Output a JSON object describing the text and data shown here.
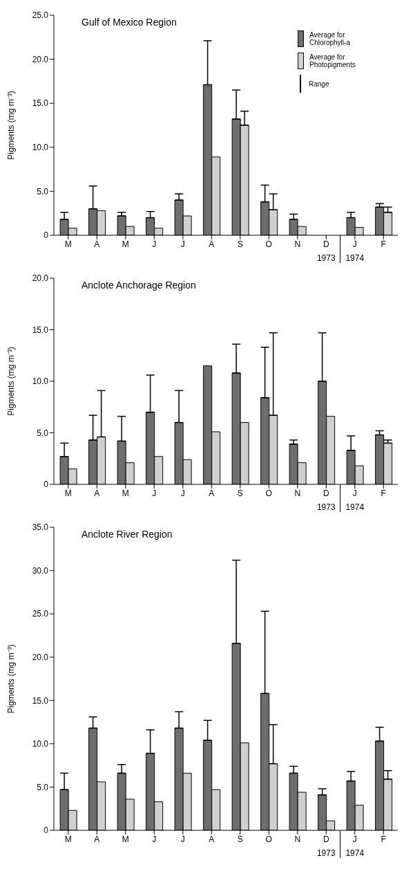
{
  "chart_data": [
    {
      "type": "bar",
      "title": "Gulf of Mexico Region",
      "ylabel": "Pigments (mg m⁻³)",
      "categories": [
        "M",
        "A",
        "M",
        "J",
        "J",
        "A",
        "S",
        "O",
        "N",
        "D",
        "J",
        "F"
      ],
      "series": [
        {
          "name": "Average for Chlorophyll-a",
          "color": "#6e6e6e",
          "values": [
            1.8,
            3.0,
            2.2,
            2.0,
            4.0,
            17.1,
            13.2,
            3.8,
            1.8,
            null,
            2.0,
            3.2
          ],
          "errors": [
            [
              1.8,
              2.6
            ],
            [
              3.0,
              5.6
            ],
            [
              2.2,
              2.6
            ],
            [
              2.0,
              2.7
            ],
            [
              4.0,
              4.7
            ],
            [
              17.1,
              22.1
            ],
            [
              13.2,
              16.5
            ],
            [
              3.8,
              5.7
            ],
            [
              1.8,
              2.4
            ],
            null,
            [
              2.0,
              2.6
            ],
            [
              3.2,
              3.6
            ]
          ]
        },
        {
          "name": "Average for Photopigments",
          "color": "#d0d0d0",
          "values": [
            0.8,
            2.8,
            1.0,
            0.8,
            2.2,
            8.9,
            12.5,
            2.9,
            1.0,
            null,
            0.9,
            2.6
          ],
          "errors": [
            null,
            null,
            null,
            null,
            null,
            null,
            [
              12.5,
              14.1
            ],
            [
              2.9,
              4.7
            ],
            null,
            null,
            null,
            [
              2.6,
              3.2
            ]
          ]
        }
      ],
      "ylim": [
        0,
        25
      ],
      "yticks": [
        {
          "value": 0,
          "label": "0"
        },
        {
          "value": 5,
          "label": "5.0"
        },
        {
          "value": 10,
          "label": "10.0"
        },
        {
          "value": 15,
          "label": "15.0"
        },
        {
          "value": 20,
          "label": "20.0"
        },
        {
          "value": 25,
          "label": "25.0"
        }
      ],
      "legend": "top right",
      "annotations": [
        "Range",
        "1973",
        "1974"
      ]
    },
    {
      "type": "bar",
      "title": "Anclote Anchorage Region",
      "ylabel": "Pigments (mg m⁻³)",
      "categories": [
        "M",
        "A",
        "M",
        "J",
        "J",
        "A",
        "S",
        "O",
        "N",
        "D",
        "J",
        "F"
      ],
      "series": [
        {
          "color": "#6e6e6e",
          "values": [
            2.7,
            4.3,
            4.2,
            7.0,
            6.0,
            11.5,
            10.8,
            8.4,
            3.9,
            10.0,
            3.3,
            4.8
          ],
          "errors": [
            [
              2.7,
              4.0
            ],
            [
              4.3,
              6.7
            ],
            [
              4.2,
              6.6
            ],
            [
              7.0,
              10.6
            ],
            [
              6.0,
              9.1
            ],
            null,
            [
              10.8,
              13.6
            ],
            [
              8.4,
              13.3
            ],
            [
              3.9,
              4.3
            ],
            [
              10.0,
              14.7
            ],
            [
              3.3,
              4.7
            ],
            [
              4.8,
              5.2
            ]
          ]
        },
        {
          "color": "#d0d0d0",
          "values": [
            1.5,
            4.6,
            2.1,
            2.7,
            2.4,
            5.1,
            6.0,
            6.7,
            2.1,
            6.6,
            1.8,
            4.0
          ],
          "errors": [
            null,
            [
              4.6,
              9.1
            ],
            null,
            null,
            null,
            null,
            null,
            [
              6.7,
              14.7
            ],
            null,
            null,
            null,
            [
              4.0,
              4.3
            ]
          ]
        }
      ],
      "ylim": [
        0,
        20
      ],
      "yticks": [
        {
          "value": 0,
          "label": "0"
        },
        {
          "value": 5,
          "label": "5.0"
        },
        {
          "value": 10,
          "label": "10.0"
        },
        {
          "value": 15,
          "label": "15.0"
        },
        {
          "value": 20,
          "label": "20.0"
        }
      ],
      "annotations": [
        "1973",
        "1974"
      ]
    },
    {
      "type": "bar",
      "title": "Anclote River Region",
      "ylabel": "Pigments (mg m⁻³)",
      "categories": [
        "M",
        "A",
        "M",
        "J",
        "J",
        "A",
        "S",
        "O",
        "N",
        "D",
        "J",
        "F"
      ],
      "series": [
        {
          "color": "#6e6e6e",
          "values": [
            4.7,
            11.8,
            6.6,
            8.9,
            11.8,
            10.4,
            21.6,
            15.8,
            6.6,
            4.1,
            5.7,
            10.3
          ],
          "errors": [
            [
              4.7,
              6.6
            ],
            [
              11.8,
              13.1
            ],
            [
              6.6,
              7.6
            ],
            [
              8.9,
              11.6
            ],
            [
              11.8,
              13.7
            ],
            [
              10.4,
              12.7
            ],
            [
              21.6,
              31.2
            ],
            [
              15.8,
              25.3
            ],
            [
              6.6,
              7.4
            ],
            [
              4.1,
              4.8
            ],
            [
              5.7,
              6.8
            ],
            [
              10.3,
              11.9
            ]
          ]
        },
        {
          "color": "#d0d0d0",
          "values": [
            2.3,
            5.6,
            3.6,
            3.3,
            6.6,
            4.7,
            10.1,
            7.7,
            4.4,
            1.1,
            2.9,
            5.9
          ],
          "errors": [
            null,
            null,
            null,
            null,
            null,
            null,
            null,
            [
              7.7,
              12.2
            ],
            null,
            null,
            null,
            [
              5.9,
              6.9
            ]
          ]
        }
      ],
      "ylim": [
        0,
        35
      ],
      "yticks": [
        {
          "value": 0,
          "label": "0"
        },
        {
          "value": 5,
          "label": "5.0"
        },
        {
          "value": 10,
          "label": "10.0"
        },
        {
          "value": 15,
          "label": "15.0"
        },
        {
          "value": 20,
          "label": "20.0"
        },
        {
          "value": 25,
          "label": "25.0"
        },
        {
          "value": 30,
          "label": "30.0"
        },
        {
          "value": 35,
          "label": "35.0"
        }
      ],
      "annotations": [
        "1973",
        "1974"
      ]
    }
  ]
}
